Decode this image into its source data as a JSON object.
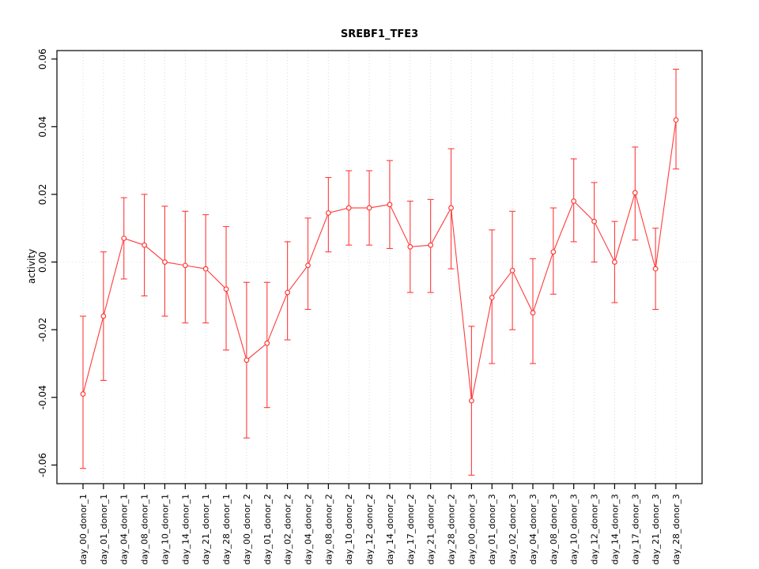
{
  "chart_data": {
    "type": "line",
    "title": "SREBF1_TFE3",
    "ylabel": "activity",
    "xlabel": "",
    "ylim": [
      -0.0655,
      0.0625
    ],
    "yticks": [
      -0.06,
      -0.04,
      -0.02,
      0.0,
      0.02,
      0.04,
      0.06
    ],
    "legend_position": "none",
    "grid": "dotted vertical gridline at each category; dotted horizontal line at y=0",
    "series_color": "#ff3b3b",
    "grid_color": "#d9d9d9",
    "zero_line_color": "#e2e2e2",
    "marker": "open-circle",
    "error_bars": true,
    "categories": [
      "day_00_donor_1",
      "day_01_donor_1",
      "day_04_donor_1",
      "day_08_donor_1",
      "day_10_donor_1",
      "day_14_donor_1",
      "day_21_donor_1",
      "day_28_donor_1",
      "day_00_donor_2",
      "day_01_donor_2",
      "day_02_donor_2",
      "day_04_donor_2",
      "day_08_donor_2",
      "day_10_donor_2",
      "day_12_donor_2",
      "day_14_donor_2",
      "day_17_donor_2",
      "day_21_donor_2",
      "day_28_donor_2",
      "day_00_donor_3",
      "day_01_donor_3",
      "day_02_donor_3",
      "day_04_donor_3",
      "day_08_donor_3",
      "day_10_donor_3",
      "day_12_donor_3",
      "day_14_donor_3",
      "day_17_donor_3",
      "day_21_donor_3",
      "day_28_donor_3"
    ],
    "values": [
      -0.039,
      -0.016,
      0.007,
      0.005,
      0.0,
      -0.001,
      -0.002,
      -0.008,
      -0.029,
      -0.024,
      -0.009,
      -0.001,
      0.0145,
      0.016,
      0.016,
      0.017,
      0.0045,
      0.005,
      0.016,
      -0.041,
      -0.0105,
      -0.0025,
      -0.015,
      0.003,
      0.018,
      0.012,
      0.0,
      0.0205,
      -0.002,
      0.042
    ],
    "lower": [
      -0.061,
      -0.035,
      -0.005,
      -0.01,
      -0.016,
      -0.018,
      -0.018,
      -0.026,
      -0.052,
      -0.043,
      -0.023,
      -0.014,
      0.003,
      0.005,
      0.005,
      0.004,
      -0.009,
      -0.009,
      -0.002,
      -0.063,
      -0.03,
      -0.02,
      -0.03,
      -0.0095,
      0.006,
      0.0,
      -0.012,
      0.0065,
      -0.014,
      0.0275
    ],
    "upper": [
      -0.016,
      0.003,
      0.019,
      0.02,
      0.0165,
      0.015,
      0.014,
      0.0105,
      -0.006,
      -0.006,
      0.006,
      0.013,
      0.025,
      0.027,
      0.027,
      0.03,
      0.018,
      0.0185,
      0.0335,
      -0.019,
      0.0095,
      0.015,
      0.001,
      0.016,
      0.0305,
      0.0235,
      0.012,
      0.034,
      0.01,
      0.057
    ]
  }
}
